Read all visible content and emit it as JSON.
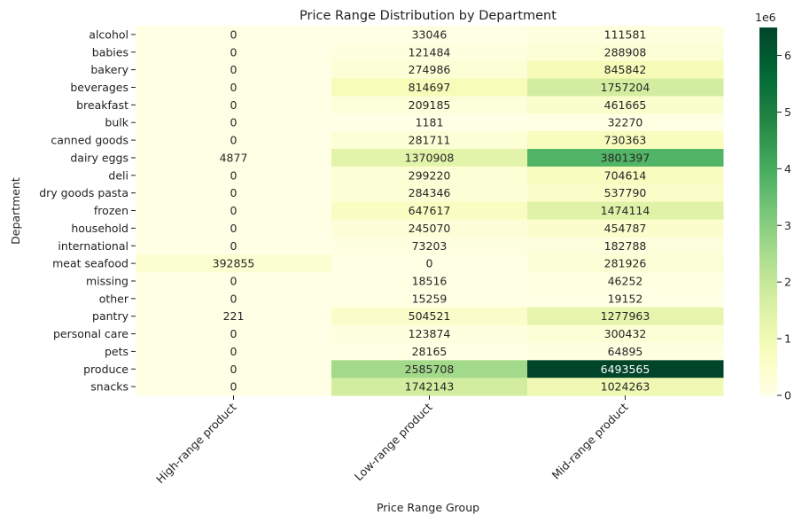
{
  "chart_data": {
    "type": "heatmap",
    "title": "Price Range Distribution by Department",
    "xlabel": "Price Range Group",
    "ylabel": "Department",
    "columns": [
      "High-range product",
      "Low-range product",
      "Mid-range product"
    ],
    "rows": [
      "alcohol",
      "babies",
      "bakery",
      "beverages",
      "breakfast",
      "bulk",
      "canned goods",
      "dairy eggs",
      "deli",
      "dry goods pasta",
      "frozen",
      "household",
      "international",
      "meat seafood",
      "missing",
      "other",
      "pantry",
      "personal care",
      "pets",
      "produce",
      "snacks"
    ],
    "values": [
      [
        0,
        33046,
        111581
      ],
      [
        0,
        121484,
        288908
      ],
      [
        0,
        274986,
        845842
      ],
      [
        0,
        814697,
        1757204
      ],
      [
        0,
        209185,
        461665
      ],
      [
        0,
        1181,
        32270
      ],
      [
        0,
        281711,
        730363
      ],
      [
        4877,
        1370908,
        3801397
      ],
      [
        0,
        299220,
        704614
      ],
      [
        0,
        284346,
        537790
      ],
      [
        0,
        647617,
        1474114
      ],
      [
        0,
        245070,
        454787
      ],
      [
        0,
        73203,
        182788
      ],
      [
        392855,
        0,
        281926
      ],
      [
        0,
        18516,
        46252
      ],
      [
        0,
        15259,
        19152
      ],
      [
        221,
        504521,
        1277963
      ],
      [
        0,
        123874,
        300432
      ],
      [
        0,
        28165,
        64895
      ],
      [
        0,
        2585708,
        6493565
      ],
      [
        0,
        1742143,
        1024263
      ]
    ],
    "colormap": "YlGn",
    "colorbar": {
      "min": 0,
      "max": 6493565,
      "ticks": [
        0,
        1,
        2,
        3,
        4,
        5,
        6
      ],
      "multiplier": "1e6"
    }
  }
}
